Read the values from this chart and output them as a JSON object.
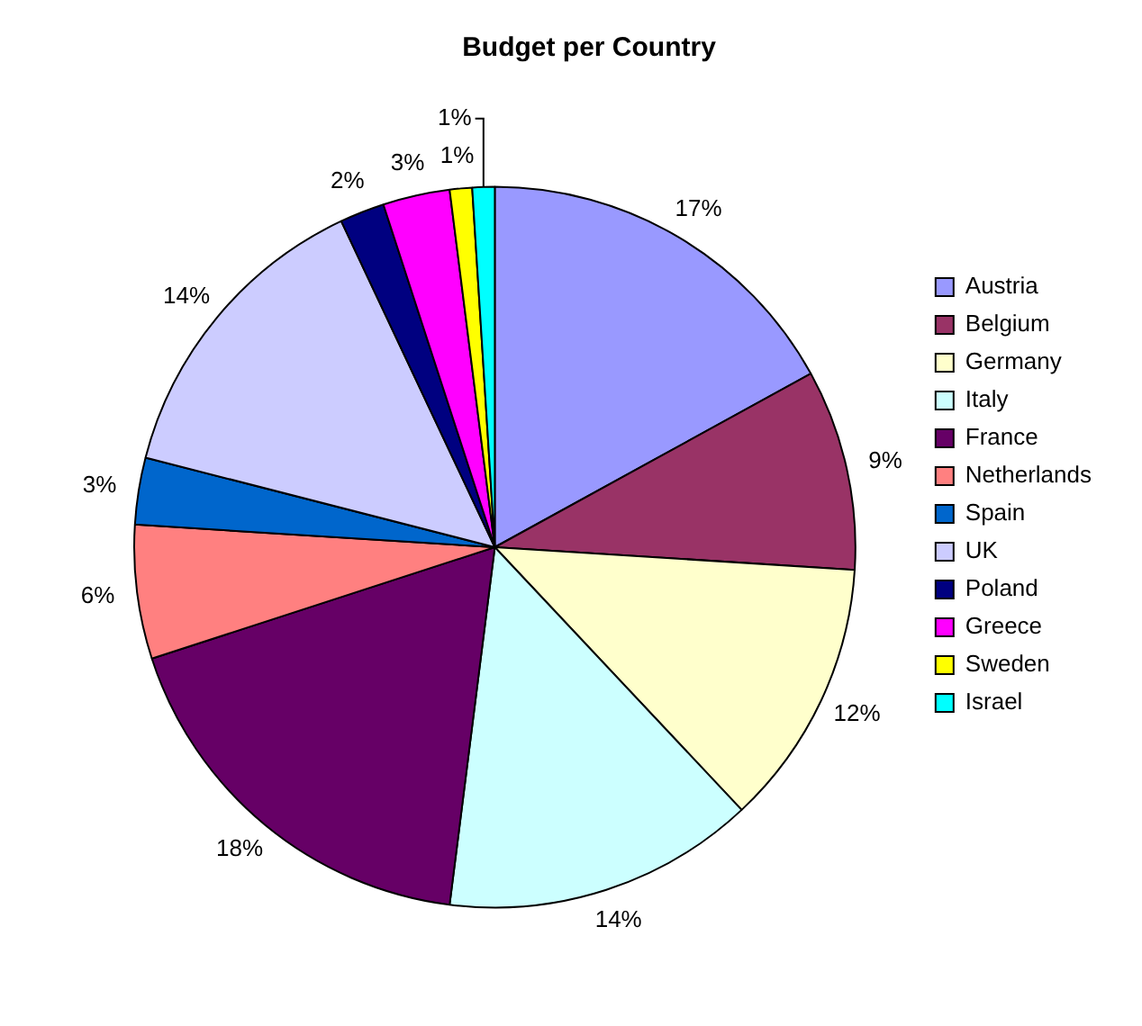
{
  "chart_data": {
    "type": "pie",
    "title": "Budget per Country",
    "categories": [
      "Austria",
      "Belgium",
      "Germany",
      "Italy",
      "France",
      "Netherlands",
      "Spain",
      "UK",
      "Poland",
      "Greece",
      "Sweden",
      "Israel"
    ],
    "values": [
      17,
      9,
      12,
      14,
      18,
      6,
      3,
      14,
      2,
      3,
      1,
      1
    ],
    "value_labels": [
      "17%",
      "9%",
      "12%",
      "14%",
      "18%",
      "6%",
      "3%",
      "14%",
      "2%",
      "3%",
      "1%",
      "1%"
    ],
    "colors": [
      "#9999ff",
      "#993366",
      "#ffffcc",
      "#ccffff",
      "#660066",
      "#ff8080",
      "#0066cc",
      "#ccccff",
      "#000080",
      "#ff00ff",
      "#ffff00",
      "#00ffff"
    ],
    "legend": "right"
  }
}
